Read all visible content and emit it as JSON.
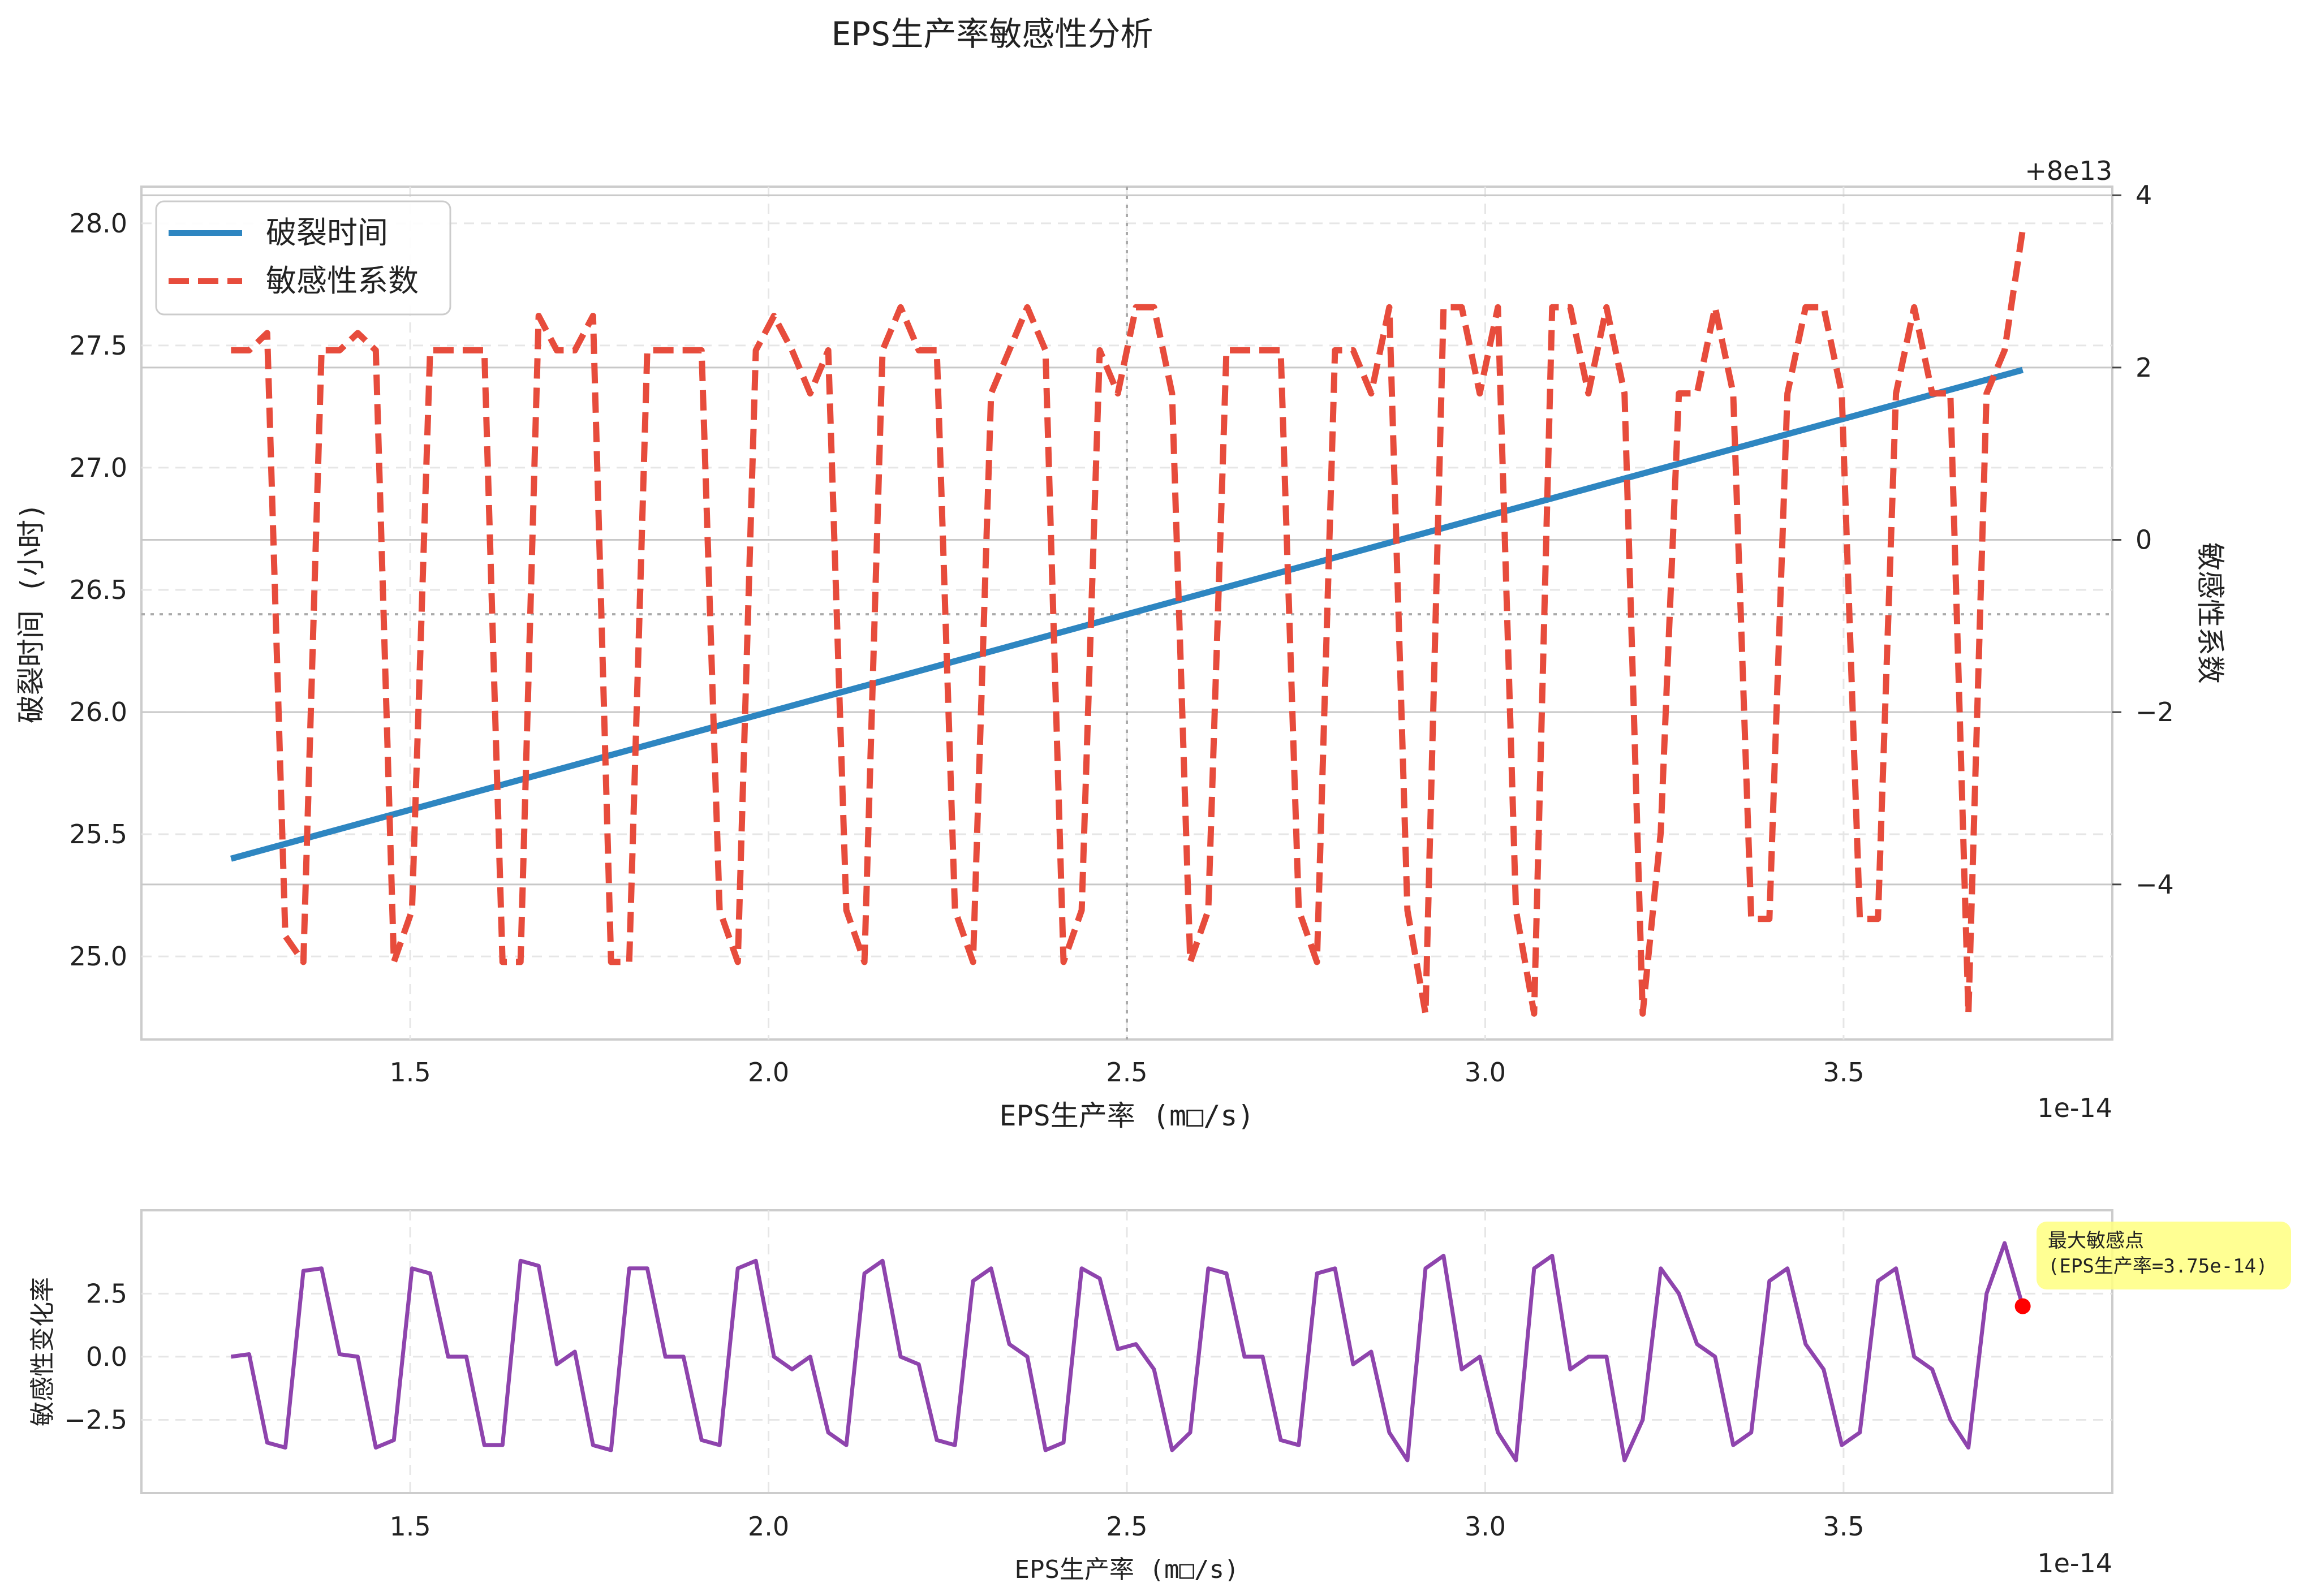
{
  "figure": {
    "title": "EPS生产率敏感性分析"
  },
  "chart_data": [
    {
      "type": "line",
      "xlabel": "EPS生产率 (m□/s)",
      "x_offset_label": "1e-14",
      "ylabel": "破裂时间 (小时)",
      "ylabel_right": "敏感性系数",
      "y_right_offset_label": "+8e13",
      "xlim": [
        1.125,
        3.875
      ],
      "ylim": [
        24.66,
        28.15
      ],
      "ylim_right": [
        -5.8,
        4.1
      ],
      "x_ticks": [
        "1.5",
        "2.0",
        "2.5",
        "3.0",
        "3.5"
      ],
      "x_tick_values": [
        1.5,
        2.0,
        2.5,
        3.0,
        3.5
      ],
      "y_ticks": [
        "25.0",
        "25.5",
        "26.0",
        "26.5",
        "27.0",
        "27.5",
        "28.0"
      ],
      "y_tick_values": [
        25.0,
        25.5,
        26.0,
        26.5,
        27.0,
        27.5,
        28.0
      ],
      "y_right_ticks": [
        "−4",
        "−2",
        "0",
        "2",
        "4"
      ],
      "y_right_tick_values": [
        -4,
        -2,
        0,
        2,
        4
      ],
      "grid": true,
      "legend_position": "top-left",
      "reference_lines": {
        "x": 2.5,
        "y": 26.4
      },
      "series": [
        {
          "name": "破裂时间",
          "color": "#2e86c1",
          "axis": "left",
          "style": "solid",
          "x": [
            1.25,
            3.75
          ],
          "y": [
            25.4,
            27.4
          ]
        },
        {
          "name": "敏感性系数",
          "color": "#e74c3c",
          "axis": "right",
          "style": "dashed",
          "x": [
            1.25,
            1.2753,
            1.3005,
            1.3258,
            1.351,
            1.3763,
            1.4015,
            1.4268,
            1.452,
            1.4773,
            1.5025,
            1.5278,
            1.553,
            1.5783,
            1.6035,
            1.6288,
            1.654,
            1.6793,
            1.7045,
            1.7298,
            1.7551,
            1.7803,
            1.8056,
            1.8308,
            1.8561,
            1.8813,
            1.9066,
            1.9318,
            1.9571,
            1.9823,
            2.0076,
            2.0328,
            2.0581,
            2.0833,
            2.1086,
            2.1338,
            2.1591,
            2.1843,
            2.2096,
            2.2348,
            2.2601,
            2.2854,
            2.3106,
            2.3359,
            2.3611,
            2.3864,
            2.4116,
            2.4369,
            2.4621,
            2.4874,
            2.5126,
            2.5379,
            2.5631,
            2.5884,
            2.6136,
            2.6389,
            2.6641,
            2.6894,
            2.7146,
            2.7399,
            2.7652,
            2.7904,
            2.8157,
            2.8409,
            2.8662,
            2.8914,
            2.9167,
            2.9419,
            2.9672,
            2.9924,
            3.0177,
            3.0429,
            3.0682,
            3.0934,
            3.1187,
            3.1439,
            3.1692,
            3.1944,
            3.2197,
            3.2449,
            3.2702,
            3.2955,
            3.3207,
            3.346,
            3.3712,
            3.3965,
            3.4217,
            3.447,
            3.4722,
            3.4975,
            3.5227,
            3.548,
            3.5732,
            3.5985,
            3.6237,
            3.649,
            3.6742,
            3.6995,
            3.7247,
            3.75
          ],
          "y": [
            2.2,
            2.2,
            2.4,
            -4.6,
            -4.9,
            2.2,
            2.2,
            2.4,
            2.2,
            -4.9,
            -4.3,
            2.2,
            2.2,
            2.2,
            2.2,
            -4.9,
            -4.9,
            2.6,
            2.2,
            2.2,
            2.6,
            -4.9,
            -4.9,
            2.2,
            2.2,
            2.2,
            2.2,
            -4.3,
            -4.9,
            2.2,
            2.6,
            2.2,
            1.7,
            2.2,
            -4.3,
            -4.9,
            2.2,
            2.7,
            2.2,
            2.2,
            -4.3,
            -4.9,
            1.7,
            2.2,
            2.7,
            2.2,
            -4.9,
            -4.3,
            2.2,
            1.7,
            2.7,
            2.7,
            1.7,
            -4.9,
            -4.3,
            2.2,
            2.2,
            2.2,
            2.2,
            -4.3,
            -4.9,
            2.2,
            2.2,
            1.7,
            2.7,
            -4.3,
            -5.5,
            2.7,
            2.7,
            1.7,
            2.7,
            -4.3,
            -5.5,
            2.7,
            2.7,
            1.7,
            2.7,
            1.7,
            -5.5,
            -3.4,
            1.7,
            1.7,
            2.7,
            1.7,
            -4.4,
            -4.4,
            1.7,
            2.7,
            2.7,
            1.7,
            -4.4,
            -4.4,
            1.7,
            2.7,
            1.7,
            1.7,
            -5.5,
            1.7,
            2.2,
            3.6
          ]
        }
      ]
    },
    {
      "type": "line",
      "xlabel": "EPS生产率 (m□/s)",
      "x_offset_label": "1e-14",
      "ylabel": "敏感性变化率",
      "xlim": [
        1.125,
        3.875
      ],
      "ylim": [
        -5.4,
        5.8
      ],
      "x_ticks": [
        "1.5",
        "2.0",
        "2.5",
        "3.0",
        "3.5"
      ],
      "x_tick_values": [
        1.5,
        2.0,
        2.5,
        3.0,
        3.5
      ],
      "y_ticks": [
        "−2.5",
        "0.0",
        "2.5"
      ],
      "y_tick_values": [
        -2.5,
        0.0,
        2.5
      ],
      "grid": true,
      "series": [
        {
          "color": "#8e44ad",
          "x": [
            1.25,
            1.2753,
            1.3005,
            1.3258,
            1.351,
            1.3763,
            1.4015,
            1.4268,
            1.452,
            1.4773,
            1.5025,
            1.5278,
            1.553,
            1.5783,
            1.6035,
            1.6288,
            1.654,
            1.6793,
            1.7045,
            1.7298,
            1.7551,
            1.7803,
            1.8056,
            1.8308,
            1.8561,
            1.8813,
            1.9066,
            1.9318,
            1.9571,
            1.9823,
            2.0076,
            2.0328,
            2.0581,
            2.0833,
            2.1086,
            2.1338,
            2.1591,
            2.1843,
            2.2096,
            2.2348,
            2.2601,
            2.2854,
            2.3106,
            2.3359,
            2.3611,
            2.3864,
            2.4116,
            2.4369,
            2.4621,
            2.4874,
            2.5126,
            2.5379,
            2.5631,
            2.5884,
            2.6136,
            2.6389,
            2.6641,
            2.6894,
            2.7146,
            2.7399,
            2.7652,
            2.7904,
            2.8157,
            2.8409,
            2.8662,
            2.8914,
            2.9167,
            2.9419,
            2.9672,
            2.9924,
            3.0177,
            3.0429,
            3.0682,
            3.0934,
            3.1187,
            3.1439,
            3.1692,
            3.1944,
            3.2197,
            3.2449,
            3.2702,
            3.2955,
            3.3207,
            3.346,
            3.3712,
            3.3965,
            3.4217,
            3.447,
            3.4722,
            3.4975,
            3.5227,
            3.548,
            3.5732,
            3.5985,
            3.6237,
            3.649,
            3.6742,
            3.6995,
            3.7247,
            3.75
          ],
          "y": [
            0.0,
            0.1,
            -3.4,
            -3.6,
            3.4,
            3.5,
            0.1,
            0.0,
            -3.6,
            -3.3,
            3.5,
            3.3,
            0.0,
            0.0,
            -3.5,
            -3.5,
            3.8,
            3.6,
            -0.3,
            0.2,
            -3.5,
            -3.7,
            3.5,
            3.5,
            0.0,
            0.0,
            -3.3,
            -3.5,
            3.5,
            3.8,
            0.0,
            -0.5,
            0.0,
            -3.0,
            -3.5,
            3.3,
            3.8,
            0.0,
            -0.3,
            -3.3,
            -3.5,
            3.0,
            3.5,
            0.5,
            0.0,
            -3.7,
            -3.4,
            3.5,
            3.1,
            0.3,
            0.5,
            -0.5,
            -3.7,
            -3.0,
            3.5,
            3.3,
            0.0,
            0.0,
            -3.3,
            -3.5,
            3.3,
            3.5,
            -0.3,
            0.2,
            -3.0,
            -4.1,
            3.5,
            4.0,
            -0.5,
            0.0,
            -3.0,
            -4.1,
            3.5,
            4.0,
            -0.5,
            0.0,
            0.0,
            -4.1,
            -2.5,
            3.5,
            2.5,
            0.5,
            0.0,
            -3.5,
            -3.0,
            3.0,
            3.5,
            0.5,
            -0.5,
            -3.5,
            -3.0,
            3.0,
            3.5,
            0.0,
            -0.5,
            -2.5,
            -3.6,
            2.5,
            4.5,
            2.0
          ]
        }
      ],
      "annotation": {
        "line1": "最大敏感点",
        "line2": "(EPS生产率=3.75e-14)",
        "point_x": 3.75,
        "point_y": 2.0,
        "marker_color": "#ff0000",
        "box_color": "#ffff80"
      }
    }
  ]
}
